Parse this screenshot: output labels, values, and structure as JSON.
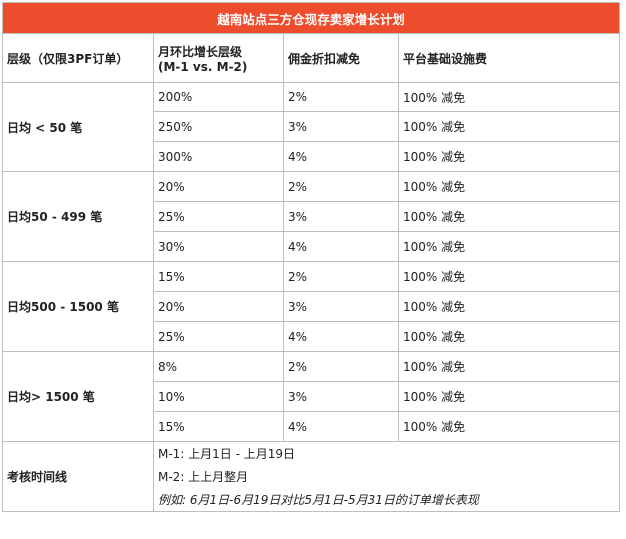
{
  "title": "越南站点三方仓现存卖家增长计划",
  "headers": {
    "tier": "层级（仅限3PF订单）",
    "growth_line1": "月环比增长层级",
    "growth_line2": "(M-1 vs. M-2)",
    "commission": "佣金折扣减免",
    "platform_fee": "平台基础设施费"
  },
  "tiers": [
    {
      "label": "日均 < 50 笔",
      "rows": [
        {
          "growth": "200%",
          "commission": "2%",
          "fee": "100% 减免"
        },
        {
          "growth": "250%",
          "commission": "3%",
          "fee": "100% 减免"
        },
        {
          "growth": "300%",
          "commission": "4%",
          "fee": "100% 减免"
        }
      ]
    },
    {
      "label": "日均50 - 499 笔",
      "rows": [
        {
          "growth": "20%",
          "commission": "2%",
          "fee": "100% 减免"
        },
        {
          "growth": "25%",
          "commission": "3%",
          "fee": "100% 减免"
        },
        {
          "growth": "30%",
          "commission": "4%",
          "fee": "100% 减免"
        }
      ]
    },
    {
      "label": "日均500 - 1500 笔",
      "rows": [
        {
          "growth": "15%",
          "commission": "2%",
          "fee": "100% 减免"
        },
        {
          "growth": "20%",
          "commission": "3%",
          "fee": "100% 减免"
        },
        {
          "growth": "25%",
          "commission": "4%",
          "fee": "100% 减免"
        }
      ]
    },
    {
      "label": "日均> 1500 笔",
      "rows": [
        {
          "growth": "8%",
          "commission": "2%",
          "fee": "100% 减免"
        },
        {
          "growth": "10%",
          "commission": "3%",
          "fee": "100% 减免"
        },
        {
          "growth": "15%",
          "commission": "4%",
          "fee": "100% 减免"
        }
      ]
    }
  ],
  "timeline": {
    "label": "考核时间线",
    "line1": "M-1: 上月1日 - 上月19日",
    "line2": "M-2: 上上月整月",
    "example": "例如: 6月1日-6月19日对比5月1日-5月31日的订单增长表现"
  }
}
